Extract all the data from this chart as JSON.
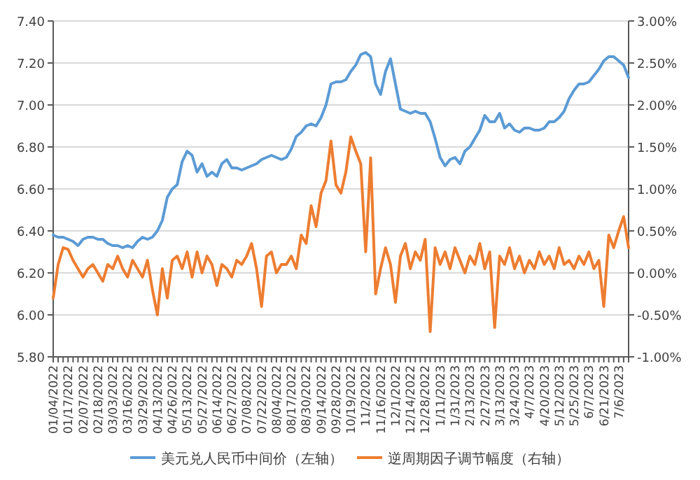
{
  "chart_data": {
    "type": "line",
    "categories": [
      "01/04/2022",
      null,
      null,
      "01/17/2022",
      null,
      null,
      "02/07/2022",
      null,
      null,
      "02/18/2022",
      null,
      null,
      "03/03/2022",
      null,
      null,
      "03/16/2022",
      null,
      null,
      "03/29/2022",
      null,
      null,
      "04/13/2022",
      null,
      null,
      "04/26/2022",
      null,
      null,
      "05/13/2022",
      null,
      null,
      "05/27/2022",
      null,
      null,
      "06/14/2022",
      null,
      null,
      "06/27/2022",
      null,
      null,
      "07/08/2022",
      null,
      null,
      "07/22/2022",
      null,
      null,
      "08/04/2022",
      null,
      null,
      "08/17/2022",
      null,
      null,
      "08/30/2022",
      null,
      null,
      "09/14/2022",
      null,
      null,
      "09/28/2022",
      null,
      null,
      "10/19/2022",
      null,
      null,
      "11/2/2022",
      null,
      null,
      "11/16/2022",
      null,
      null,
      "12/1/2022",
      null,
      null,
      "12/14/2022",
      null,
      null,
      "12/28/2022",
      null,
      null,
      "1/11/2023",
      null,
      null,
      "1/31/2023",
      null,
      null,
      "2/13/2023",
      null,
      null,
      "2/27/2023",
      null,
      null,
      "3/13/2023",
      null,
      null,
      "3/24/2023",
      null,
      null,
      "4/7/2023",
      null,
      null,
      "4/20/2023",
      null,
      null,
      "5/12/2023",
      null,
      null,
      "5/25/2023",
      null,
      null,
      "6/7/2023",
      null,
      null,
      "6/21/2023",
      null,
      null,
      "7/6/2023",
      null,
      null
    ],
    "series": [
      {
        "name": "美元兑人民币中间价（左轴）",
        "color": "#5b9bd5",
        "values": [
          6.38,
          6.37,
          6.37,
          6.36,
          6.35,
          6.33,
          6.36,
          6.37,
          6.37,
          6.36,
          6.36,
          6.34,
          6.33,
          6.33,
          6.32,
          6.33,
          6.32,
          6.35,
          6.37,
          6.36,
          6.37,
          6.4,
          6.45,
          6.56,
          6.6,
          6.62,
          6.73,
          6.78,
          6.76,
          6.68,
          6.72,
          6.66,
          6.68,
          6.66,
          6.72,
          6.74,
          6.7,
          6.7,
          6.69,
          6.7,
          6.71,
          6.72,
          6.74,
          6.75,
          6.76,
          6.75,
          6.74,
          6.75,
          6.79,
          6.85,
          6.87,
          6.9,
          6.91,
          6.9,
          6.94,
          7.0,
          7.1,
          7.11,
          7.11,
          7.12,
          7.16,
          7.19,
          7.24,
          7.25,
          7.23,
          7.1,
          7.05,
          7.16,
          7.22,
          7.1,
          6.98,
          6.97,
          6.96,
          6.97,
          6.96,
          6.96,
          6.92,
          6.84,
          6.75,
          6.71,
          6.74,
          6.75,
          6.72,
          6.78,
          6.8,
          6.84,
          6.88,
          6.95,
          6.92,
          6.92,
          6.96,
          6.89,
          6.91,
          6.88,
          6.87,
          6.89,
          6.89,
          6.88,
          6.88,
          6.89,
          6.92,
          6.92,
          6.94,
          6.97,
          7.03,
          7.07,
          7.1,
          7.1,
          7.11,
          7.14,
          7.17,
          7.21,
          7.23,
          7.23,
          7.21,
          7.19,
          7.13
        ]
      },
      {
        "name": "逆周期因子调节幅度（右轴）",
        "color": "#ed7d31",
        "axis": "y2",
        "values": [
          -0.3,
          0.1,
          0.3,
          0.28,
          0.15,
          0.05,
          -0.05,
          0.05,
          0.1,
          0.0,
          -0.1,
          0.1,
          0.05,
          0.2,
          0.05,
          -0.05,
          0.15,
          0.05,
          -0.05,
          0.15,
          -0.2,
          -0.5,
          0.05,
          -0.3,
          0.15,
          0.2,
          0.05,
          0.25,
          -0.05,
          0.25,
          0.0,
          0.2,
          0.1,
          -0.15,
          0.1,
          0.05,
          -0.05,
          0.15,
          0.1,
          0.2,
          0.35,
          0.05,
          -0.4,
          0.2,
          0.25,
          0.0,
          0.1,
          0.1,
          0.2,
          0.05,
          0.45,
          0.35,
          0.8,
          0.55,
          0.95,
          1.1,
          1.57,
          1.05,
          0.95,
          1.2,
          1.62,
          1.45,
          1.3,
          0.25,
          1.37,
          -0.25,
          0.05,
          0.3,
          0.1,
          -0.35,
          0.2,
          0.35,
          0.05,
          0.25,
          0.15,
          0.4,
          -0.7,
          0.3,
          0.1,
          0.25,
          0.05,
          0.3,
          0.15,
          0.0,
          0.2,
          0.1,
          0.35,
          0.05,
          0.25,
          -0.65,
          0.2,
          0.1,
          0.3,
          0.05,
          0.2,
          0.0,
          0.15,
          0.05,
          0.25,
          0.1,
          0.2,
          0.05,
          0.3,
          0.1,
          0.15,
          0.05,
          0.2,
          0.1,
          0.25,
          0.05,
          0.15,
          -0.4,
          0.45,
          0.3,
          0.5,
          0.67,
          0.3
        ]
      }
    ],
    "ylim": [
      5.8,
      7.4
    ],
    "yticks": [
      {
        "value": 5.8,
        "label": "5.80"
      },
      {
        "value": 6,
        "label": "6.00"
      },
      {
        "value": 6.2,
        "label": "6.20"
      },
      {
        "value": 6.4,
        "label": "6.40"
      },
      {
        "value": 6.6,
        "label": "6.60"
      },
      {
        "value": 6.8,
        "label": "6.80"
      },
      {
        "value": 7,
        "label": "7.00"
      },
      {
        "value": 7.2,
        "label": "7.20"
      },
      {
        "value": 7.4,
        "label": "7.40"
      }
    ],
    "y2lim": [
      -1,
      3
    ],
    "y2ticks": [
      {
        "value": -1,
        "label": "-1.00%"
      },
      {
        "value": -0.5,
        "label": "-0.50%"
      },
      {
        "value": 0,
        "label": "0.00%"
      },
      {
        "value": 0.5,
        "label": "0.50%"
      },
      {
        "value": 1,
        "label": "1.00%"
      },
      {
        "value": 1.5,
        "label": "1.50%"
      },
      {
        "value": 2,
        "label": "2.00%"
      },
      {
        "value": 2.5,
        "label": "2.50%"
      },
      {
        "value": 3,
        "label": "3.00%"
      }
    ],
    "grid": "y",
    "legend": "bottom",
    "marker": "none",
    "line_style": "solid"
  }
}
